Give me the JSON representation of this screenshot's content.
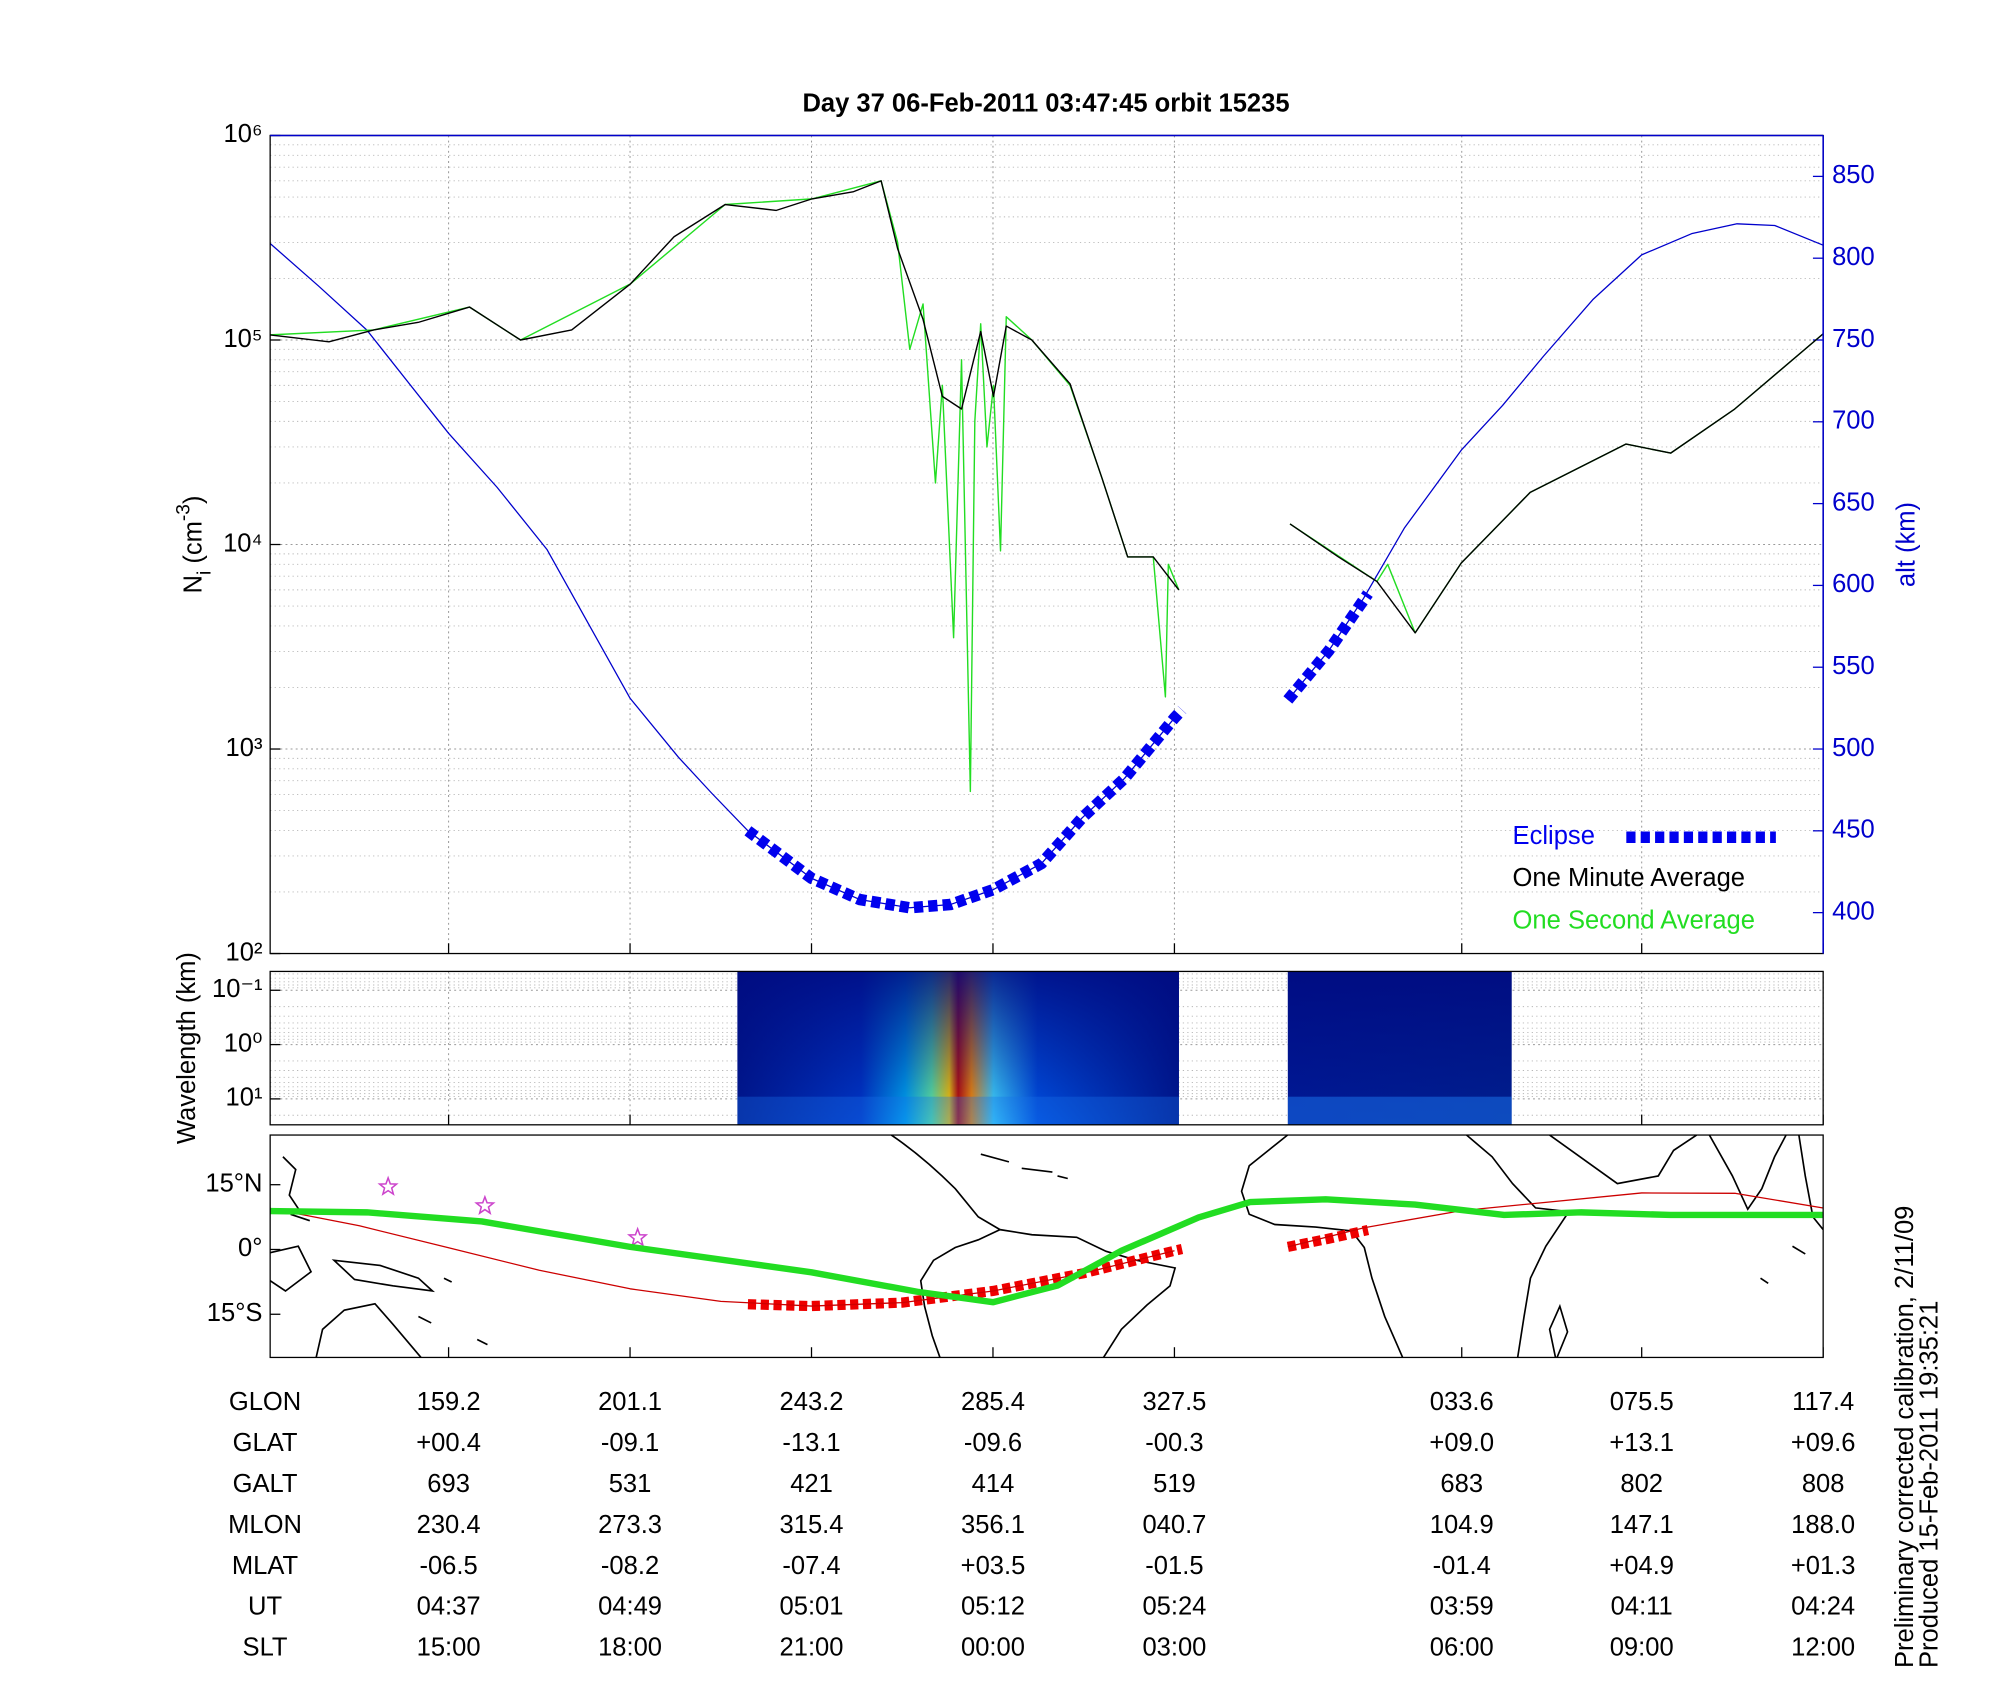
{
  "chart_data": [
    {
      "type": "line",
      "title": "Day 37  06-Feb-2011 03:47:45   orbit 15235",
      "ylabel": [
        "N",
        "i",
        " (cm",
        "-3",
        ")"
      ],
      "y2label": "alt (km)",
      "xlim": [
        0,
        102.7
      ],
      "xticks": [
        11.8,
        23.8,
        35.8,
        47.8,
        59.8,
        78.8,
        90.7,
        102.7
      ],
      "ylim": [
        100,
        1000000
      ],
      "yscale": "log",
      "yticks": [
        {
          "value": 100,
          "label": "10²"
        },
        {
          "value": 1000,
          "label": "10³"
        },
        {
          "value": 10000,
          "label": "10⁴"
        },
        {
          "value": 100000,
          "label": "10⁵"
        },
        {
          "value": 1000000,
          "label": "10⁶"
        }
      ],
      "y2lim": [
        375,
        875
      ],
      "y2ticks": [
        400,
        450,
        500,
        550,
        600,
        650,
        700,
        750,
        800,
        850
      ],
      "y2color": "#0000cc",
      "grid": true,
      "minor_grid": true,
      "legend": "lower right",
      "series": [
        {
          "name": "Eclipse",
          "color": "#0000ee",
          "axis": "y2",
          "style": "dashed",
          "linewidth": 9,
          "x": [
            31.6,
            35.8,
            39,
            42.3,
            45,
            47.8,
            51,
            53.7,
            56.5,
            59.8,
            60.3,
            null,
            67.3,
            70,
            72.6
          ],
          "values": [
            450,
            421,
            408,
            403,
            405,
            414,
            430,
            458,
            482,
            519,
            524,
            null,
            530,
            560,
            595
          ]
        },
        {
          "name": "One Minute Average",
          "color": "#000000",
          "linewidth": 1.1,
          "x": [
            0,
            3.89,
            6.85,
            9.8,
            13.18,
            16.56,
            19.94,
            23.83,
            26.71,
            30.09,
            33.47,
            35.83,
            38.54,
            40.4,
            41.49,
            43.18,
            44.45,
            45.72,
            46.99,
            47.83,
            48.68,
            50.37,
            52.9,
            55.02,
            56.71,
            58.4,
            60.09,
            null,
            67.44,
            70.65,
            73.19,
            75.72,
            78.76,
            83.33,
            89.67,
            92.62,
            96.85,
            102.68
          ],
          "values": [
            106000,
            98000,
            112000,
            122000,
            145000,
            100000,
            112000,
            188000,
            320000,
            460000,
            430000,
            490000,
            530000,
            600000,
            280000,
            126000,
            53000,
            46000,
            110000,
            53000,
            117000,
            100000,
            61000,
            21000,
            8700,
            8700,
            6000,
            null,
            12600,
            8700,
            6600,
            3700,
            8100,
            18000,
            31000,
            28000,
            46000,
            107000
          ]
        },
        {
          "name": "One Second Average",
          "color": "#22dd22",
          "linewidth": 1.1,
          "x": [
            0,
            6.85,
            13.18,
            16.56,
            23.83,
            30.09,
            35.83,
            40.4,
            41.49,
            42.3,
            43.18,
            44.0,
            44.45,
            45.2,
            45.72,
            46.3,
            46.6,
            46.99,
            47.4,
            47.83,
            48.3,
            48.68,
            50.37,
            52.9,
            55.02,
            56.71,
            58.4,
            59.2,
            59.4,
            60.09,
            null,
            67.44,
            73.19,
            73.9,
            75.72,
            78.76,
            83.33,
            89.67,
            92.62,
            96.85,
            102.68
          ],
          "values": [
            106000,
            112000,
            145000,
            100000,
            188000,
            460000,
            490000,
            600000,
            300000,
            90000,
            150000,
            20000,
            60000,
            3500,
            80000,
            620,
            40000,
            120000,
            30000,
            60000,
            9300,
            130000,
            100000,
            60000,
            21000,
            8700,
            8700,
            1800,
            8000,
            6000,
            null,
            12600,
            6600,
            8000,
            3700,
            8100,
            18000,
            31000,
            28000,
            46000,
            107000
          ]
        },
        {
          "color": "#0000cc",
          "axis": "y2",
          "linewidth": 1,
          "x": [
            0,
            3.2,
            6.4,
            11.8,
            15,
            18.3,
            23.8,
            27,
            29.2,
            31.6,
            35.8,
            39,
            42.3,
            45,
            47.8,
            51,
            53.7,
            56.5,
            59.8,
            null,
            67.3,
            70,
            72.3,
            75,
            78.8,
            81.5,
            84.2,
            87.5,
            90.7,
            94,
            97,
            99.5,
            102.7
          ],
          "values": [
            809,
            783,
            756,
            693,
            660,
            622,
            531,
            495,
            473,
            450,
            421,
            408,
            403,
            405,
            414,
            430,
            458,
            482,
            519,
            null,
            530,
            560,
            592,
            635,
            683,
            710,
            740,
            775,
            802,
            815,
            821,
            820,
            808
          ]
        }
      ]
    },
    {
      "type": "spectrogram",
      "ylabel": "Wavelength (km)",
      "xlim": [
        0,
        102.7
      ],
      "xticks": [
        11.8,
        23.8,
        35.8,
        47.8,
        59.8,
        78.8,
        90.7,
        102.7
      ],
      "ylim": [
        0.045,
        30
      ],
      "yscale": "log",
      "reverse": true,
      "yticks": [
        {
          "value": 0.1,
          "label": "10⁻¹"
        },
        {
          "value": 1,
          "label": "10⁰"
        },
        {
          "value": 10,
          "label": "10¹"
        }
      ],
      "grid": true,
      "minor_grid": true,
      "blocks": [
        {
          "x": [
            30.9,
            60.1
          ]
        },
        {
          "x": [
            67.3,
            82.1
          ]
        }
      ]
    },
    {
      "type": "map",
      "xlim": [
        0,
        102.7
      ],
      "xticks": [
        11.8,
        23.8,
        35.8,
        47.8,
        59.8,
        78.8,
        90.7,
        102.7
      ],
      "ylim": [
        -25,
        26.5
      ],
      "yticks": [
        {
          "value": 15,
          "label": "15°N"
        },
        {
          "value": 0,
          "label": "0°"
        },
        {
          "value": -15,
          "label": "15°S"
        }
      ],
      "series": [
        {
          "color": "#22dd22",
          "linewidth": 5,
          "x": [
            0,
            6.4,
            14.0,
            23.8,
            35.8,
            42.8,
            47.8,
            52.1,
            56.3,
            61.4,
            64.8,
            69.8,
            75.7,
            81.6,
            86.7,
            92.6,
            102.7
          ],
          "values": [
            8.9,
            8.6,
            6.5,
            0.6,
            -5.3,
            -9.8,
            -12.2,
            -8.3,
            -0.3,
            7.4,
            11,
            11.6,
            10.4,
            8,
            8.6,
            8,
            8
          ]
        },
        {
          "color": "#cc0000",
          "linewidth": 1,
          "x": [
            0,
            5.9,
            11.8,
            17.8,
            23.8,
            29.8,
            35.8,
            41.8,
            47.8,
            53.8,
            59.8,
            null,
            67.3,
            72.3,
            78.8,
            90.7,
            96.9,
            102.7
          ],
          "values": [
            9.5,
            5.5,
            0.4,
            -4.8,
            -9.1,
            -12,
            -13.1,
            -12.3,
            -9.6,
            -5.5,
            -0.3,
            null,
            0.6,
            5,
            9,
            13.1,
            13,
            9.6
          ]
        },
        {
          "color": "#ee0000",
          "style": "dashed",
          "linewidth": 8,
          "x": [
            31.6,
            35.8,
            41.8,
            47.8,
            53.8,
            59.8,
            60.3,
            null,
            67.3,
            70,
            72.6
          ],
          "values": [
            -12.7,
            -13.1,
            -12.3,
            -9.6,
            -5.5,
            -0.3,
            0.1,
            null,
            0.6,
            2.5,
            4.5
          ]
        },
        {
          "color": "#cc44cc",
          "marker": "star",
          "x": [
            7.8,
            14.2,
            24.3
          ],
          "values": [
            14.5,
            10.1,
            2.7
          ]
        }
      ]
    }
  ],
  "table": {
    "rows": [
      {
        "label": "GLON",
        "values": [
          "159.2",
          "201.1",
          "243.2",
          "285.4",
          "327.5",
          "033.6",
          "075.5",
          "117.4"
        ]
      },
      {
        "label": "GLAT",
        "values": [
          "+00.4",
          "-09.1",
          "-13.1",
          "-09.6",
          "-00.3",
          "+09.0",
          "+13.1",
          "+09.6"
        ]
      },
      {
        "label": "GALT",
        "values": [
          "693",
          "531",
          "421",
          "414",
          "519",
          "683",
          "802",
          "808"
        ]
      },
      {
        "label": "MLON",
        "values": [
          "230.4",
          "273.3",
          "315.4",
          "356.1",
          "040.7",
          "104.9",
          "147.1",
          "188.0"
        ]
      },
      {
        "label": "MLAT",
        "values": [
          "-06.5",
          "-08.2",
          "-07.4",
          "+03.5",
          "-01.5",
          "-01.4",
          "+04.9",
          "+01.3"
        ]
      },
      {
        "label": "UT",
        "values": [
          "04:37",
          "04:49",
          "05:01",
          "05:12",
          "05:24",
          "03:59",
          "04:11",
          "04:24"
        ]
      },
      {
        "label": "SLT",
        "values": [
          "15:00",
          "18:00",
          "21:00",
          "00:00",
          "03:00",
          "06:00",
          "09:00",
          "12:00"
        ]
      }
    ]
  },
  "notes": [
    "Preliminary corrected calibration, 2/11/09",
    "Produced 15-Feb-2011 19:35:21"
  ]
}
